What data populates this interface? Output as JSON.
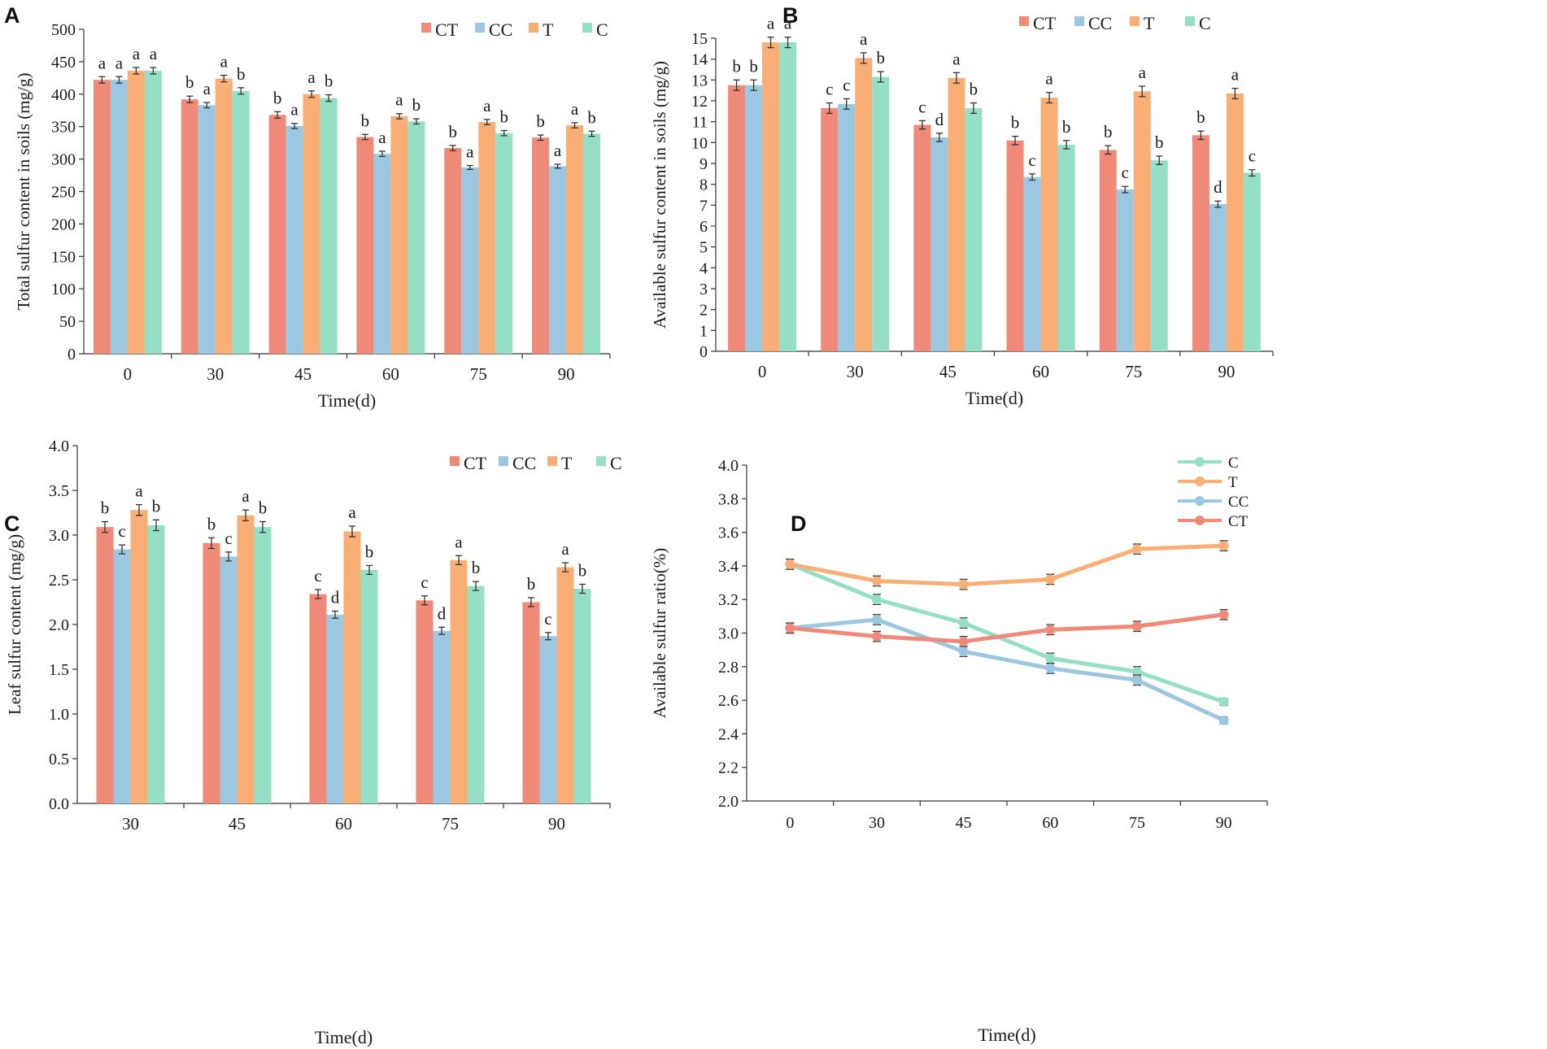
{
  "colors": {
    "CT": "#EE8A77",
    "CC": "#9CC7E1",
    "T": "#F8AE74",
    "C": "#94DFC6",
    "axis": "#333333",
    "error": "#333333"
  },
  "chart_data": [
    {
      "panel": "A",
      "type": "bar",
      "xlabel": "Time(d)",
      "ylabel": "Total sulfur content in soils (mg/g)",
      "ylim": [
        0,
        500
      ],
      "ytick_step": 50,
      "ytick_decimals": 0,
      "legend_position": "top-right",
      "categories": [
        "0",
        "30",
        "45",
        "60",
        "75",
        "90"
      ],
      "series": [
        {
          "name": "CT",
          "values": [
            422,
            392,
            368,
            334,
            317,
            333
          ],
          "errors": [
            5,
            5,
            5,
            4,
            4,
            4
          ],
          "letters": [
            "a",
            "b",
            "b",
            "b",
            "b",
            "b"
          ]
        },
        {
          "name": "CC",
          "values": [
            422,
            383,
            351,
            308,
            287,
            289
          ],
          "errors": [
            5,
            4,
            4,
            4,
            3,
            3
          ],
          "letters": [
            "a",
            "a",
            "a",
            "a",
            "a",
            "a"
          ]
        },
        {
          "name": "T",
          "values": [
            436,
            424,
            400,
            366,
            357,
            352
          ],
          "errors": [
            5,
            5,
            5,
            4,
            4,
            4
          ],
          "letters": [
            "a",
            "a",
            "a",
            "a",
            "a",
            "a"
          ]
        },
        {
          "name": "C",
          "values": [
            436,
            405,
            394,
            358,
            340,
            339
          ],
          "errors": [
            5,
            5,
            5,
            4,
            4,
            4
          ],
          "letters": [
            "a",
            "b",
            "b",
            "b",
            "b",
            "b"
          ]
        }
      ]
    },
    {
      "panel": "B",
      "type": "bar",
      "xlabel": "Time(d)",
      "ylabel": "Available sulfur content in soils (mg/g)",
      "ylim": [
        0,
        15
      ],
      "ytick_step": 1,
      "ytick_decimals": 0,
      "legend_position": "top-right",
      "categories": [
        "0",
        "30",
        "45",
        "60",
        "75",
        "90"
      ],
      "series": [
        {
          "name": "CT",
          "values": [
            12.75,
            11.65,
            10.85,
            10.1,
            9.65,
            10.35
          ],
          "errors": [
            0.25,
            0.25,
            0.2,
            0.2,
            0.2,
            0.2
          ],
          "letters": [
            "b",
            "c",
            "c",
            "b",
            "b",
            "b"
          ]
        },
        {
          "name": "CC",
          "values": [
            12.75,
            11.85,
            10.25,
            8.35,
            7.75,
            7.05
          ],
          "errors": [
            0.25,
            0.25,
            0.2,
            0.15,
            0.15,
            0.15
          ],
          "letters": [
            "b",
            "c",
            "d",
            "c",
            "c",
            "d"
          ]
        },
        {
          "name": "T",
          "values": [
            14.8,
            14.05,
            13.1,
            12.15,
            12.45,
            12.35
          ],
          "errors": [
            0.25,
            0.25,
            0.25,
            0.25,
            0.25,
            0.25
          ],
          "letters": [
            "a",
            "a",
            "a",
            "a",
            "a",
            "a"
          ]
        },
        {
          "name": "C",
          "values": [
            14.8,
            13.15,
            11.65,
            9.9,
            9.15,
            8.55
          ],
          "errors": [
            0.25,
            0.25,
            0.25,
            0.2,
            0.2,
            0.15
          ],
          "letters": [
            "a",
            "b",
            "b",
            "b",
            "b",
            "c"
          ]
        }
      ]
    },
    {
      "panel": "C",
      "type": "bar",
      "xlabel": "Time(d)",
      "ylabel": "Leaf sulfur content (mg/g)",
      "ylim": [
        0,
        4
      ],
      "ytick_step": 0.5,
      "ytick_decimals": 1,
      "legend_position": "top-right",
      "categories": [
        "30",
        "45",
        "60",
        "75",
        "90"
      ],
      "series": [
        {
          "name": "CT",
          "values": [
            3.09,
            2.91,
            2.34,
            2.27,
            2.25
          ],
          "errors": [
            0.06,
            0.06,
            0.05,
            0.05,
            0.05
          ],
          "letters": [
            "b",
            "b",
            "c",
            "c",
            "b"
          ]
        },
        {
          "name": "CC",
          "values": [
            2.84,
            2.76,
            2.11,
            1.93,
            1.87
          ],
          "errors": [
            0.05,
            0.05,
            0.04,
            0.04,
            0.04
          ],
          "letters": [
            "c",
            "c",
            "d",
            "d",
            "c"
          ]
        },
        {
          "name": "T",
          "values": [
            3.28,
            3.22,
            3.04,
            2.72,
            2.64
          ],
          "errors": [
            0.06,
            0.06,
            0.06,
            0.05,
            0.05
          ],
          "letters": [
            "a",
            "a",
            "a",
            "a",
            "a"
          ]
        },
        {
          "name": "C",
          "values": [
            3.11,
            3.09,
            2.61,
            2.43,
            2.4
          ],
          "errors": [
            0.06,
            0.06,
            0.05,
            0.05,
            0.05
          ],
          "letters": [
            "b",
            "b",
            "b",
            "b",
            "b"
          ]
        }
      ]
    },
    {
      "panel": "D",
      "type": "line",
      "xlabel": "Time(d)",
      "ylabel": "Available sulfur ratio(%)",
      "ylim": [
        2.0,
        4.0
      ],
      "ytick_step": 0.2,
      "ytick_decimals": 1,
      "legend_position": "top-right",
      "x": [
        "0",
        "30",
        "45",
        "60",
        "75",
        "90"
      ],
      "series": [
        {
          "name": "C",
          "values": [
            3.41,
            3.2,
            3.06,
            2.85,
            2.77,
            2.59
          ],
          "errors": [
            0.03,
            0.03,
            0.03,
            0.03,
            0.03,
            0.02
          ]
        },
        {
          "name": "T",
          "values": [
            3.41,
            3.31,
            3.29,
            3.32,
            3.5,
            3.52
          ],
          "errors": [
            0.03,
            0.03,
            0.03,
            0.03,
            0.03,
            0.03
          ]
        },
        {
          "name": "CC",
          "values": [
            3.03,
            3.08,
            2.89,
            2.79,
            2.72,
            2.48
          ],
          "errors": [
            0.03,
            0.03,
            0.03,
            0.03,
            0.03,
            0.02
          ]
        },
        {
          "name": "CT",
          "values": [
            3.03,
            2.98,
            2.95,
            3.02,
            3.04,
            3.11
          ],
          "errors": [
            0.03,
            0.03,
            0.03,
            0.03,
            0.03,
            0.03
          ]
        }
      ]
    }
  ]
}
